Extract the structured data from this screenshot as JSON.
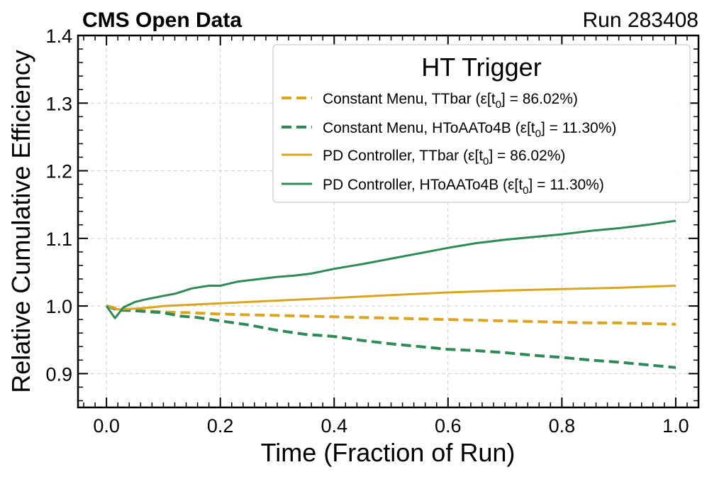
{
  "header": {
    "left": "CMS Open Data",
    "right": "Run 283408"
  },
  "chart_data": {
    "type": "line",
    "title": "",
    "xlabel": "Time (Fraction of Run)",
    "ylabel": "Relative Cumulative Efficiency",
    "xlim": [
      -0.05,
      1.04
    ],
    "ylim": [
      0.85,
      1.4
    ],
    "xticks": [
      0.0,
      0.2,
      0.4,
      0.6,
      0.8,
      1.0
    ],
    "xtick_labels": [
      "0.0",
      "0.2",
      "0.4",
      "0.6",
      "0.8",
      "1.0"
    ],
    "yticks": [
      0.9,
      1.0,
      1.1,
      1.2,
      1.3,
      1.4
    ],
    "ytick_labels": [
      "0.9",
      "1.0",
      "1.1",
      "1.2",
      "1.3",
      "1.4"
    ],
    "grid": true,
    "legend": {
      "title": "HT Trigger",
      "position": "top-right"
    },
    "series": [
      {
        "name": "Constant Menu, TTbar (ε[t₀] = 86.02%)",
        "label_prefix": "Constant Menu, TTbar (ε[t",
        "label_sub": "0",
        "label_suffix": "] = 86.02%)",
        "color": "#DAA520",
        "style": "dashed",
        "x": [
          0.0,
          0.02,
          0.05,
          0.1,
          0.15,
          0.2,
          0.25,
          0.3,
          0.35,
          0.4,
          0.45,
          0.5,
          0.55,
          0.6,
          0.65,
          0.7,
          0.75,
          0.8,
          0.85,
          0.9,
          0.95,
          1.0
        ],
        "y": [
          1.0,
          0.996,
          0.994,
          0.991,
          0.99,
          0.988,
          0.987,
          0.986,
          0.985,
          0.984,
          0.983,
          0.982,
          0.981,
          0.98,
          0.979,
          0.978,
          0.977,
          0.976,
          0.975,
          0.975,
          0.974,
          0.973
        ]
      },
      {
        "name": "Constant Menu, HToAATo4B (ε[t₀] = 11.30%)",
        "label_prefix": "Constant Menu, HToAATo4B (ε[t",
        "label_sub": "0",
        "label_suffix": "] = 11.30%)",
        "color": "#2E8B57",
        "style": "dashed",
        "x": [
          0.0,
          0.02,
          0.05,
          0.1,
          0.13,
          0.16,
          0.2,
          0.25,
          0.3,
          0.35,
          0.4,
          0.45,
          0.5,
          0.55,
          0.6,
          0.65,
          0.7,
          0.75,
          0.8,
          0.85,
          0.9,
          0.95,
          1.0
        ],
        "y": [
          1.0,
          0.994,
          0.993,
          0.99,
          0.985,
          0.983,
          0.978,
          0.972,
          0.964,
          0.958,
          0.955,
          0.949,
          0.944,
          0.94,
          0.936,
          0.934,
          0.931,
          0.927,
          0.924,
          0.92,
          0.917,
          0.913,
          0.909
        ]
      },
      {
        "name": "PD Controller, TTbar (ε[t₀] = 86.02%)",
        "label_prefix": "PD Controller, TTbar (ε[t",
        "label_sub": "0",
        "label_suffix": "] = 86.02%)",
        "color": "#DAA520",
        "style": "solid",
        "x": [
          0.0,
          0.02,
          0.05,
          0.08,
          0.1,
          0.15,
          0.2,
          0.3,
          0.4,
          0.5,
          0.6,
          0.7,
          0.8,
          0.9,
          1.0
        ],
        "y": [
          1.0,
          0.995,
          0.996,
          0.998,
          1.0,
          1.002,
          1.004,
          1.008,
          1.012,
          1.016,
          1.02,
          1.023,
          1.025,
          1.027,
          1.03
        ]
      },
      {
        "name": "PD Controller, HToAATo4B (ε[t₀] = 11.30%)",
        "label_prefix": "PD Controller, HToAATo4B (ε[t",
        "label_sub": "0",
        "label_suffix": "] = 11.30%)",
        "color": "#2E8B57",
        "style": "solid",
        "x": [
          0.0,
          0.015,
          0.03,
          0.05,
          0.07,
          0.1,
          0.12,
          0.15,
          0.18,
          0.2,
          0.23,
          0.27,
          0.3,
          0.33,
          0.36,
          0.4,
          0.45,
          0.5,
          0.55,
          0.6,
          0.65,
          0.7,
          0.75,
          0.8,
          0.85,
          0.9,
          0.95,
          1.0
        ],
        "y": [
          1.0,
          0.982,
          0.998,
          1.006,
          1.01,
          1.015,
          1.018,
          1.026,
          1.03,
          1.03,
          1.036,
          1.04,
          1.043,
          1.045,
          1.048,
          1.055,
          1.062,
          1.07,
          1.078,
          1.086,
          1.093,
          1.098,
          1.102,
          1.106,
          1.111,
          1.115,
          1.12,
          1.126
        ]
      }
    ]
  }
}
